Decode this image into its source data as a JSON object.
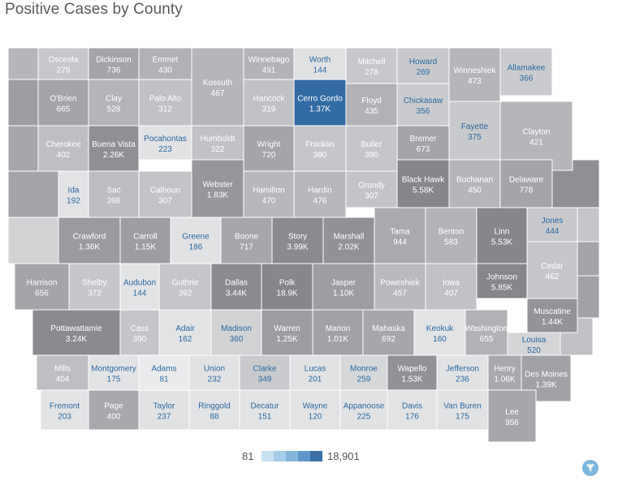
{
  "title": "Positive Cases by County",
  "legend": {
    "min_label": "81",
    "max_label": "18,901",
    "swatches": [
      "#c8e1f2",
      "#a6cde8",
      "#85b6da",
      "#5f98c8",
      "#3b6fa6"
    ]
  },
  "filter": {
    "icon": "filter-icon"
  },
  "colors": {
    "border": "#ffffff",
    "background_ring": "#d7d8da",
    "highlight": "#336ba4"
  },
  "counties": [
    {
      "name": "Osceola",
      "value": "279"
    },
    {
      "name": "Dickinson",
      "value": "736"
    },
    {
      "name": "Emmet",
      "value": "430"
    },
    {
      "name": "Kossuth",
      "value": "467"
    },
    {
      "name": "Winnebago",
      "value": "491"
    },
    {
      "name": "Worth",
      "value": "144"
    },
    {
      "name": "Mitchell",
      "value": "278"
    },
    {
      "name": "Howard",
      "value": "269"
    },
    {
      "name": "Winneshiek",
      "value": "473"
    },
    {
      "name": "Allamakee",
      "value": "366"
    },
    {
      "name": "O'Brien",
      "value": "665"
    },
    {
      "name": "Clay",
      "value": "528"
    },
    {
      "name": "Palo Alto",
      "value": "312"
    },
    {
      "name": "Hancock",
      "value": "319"
    },
    {
      "name": "Cerro Gordo",
      "value": "1.37K"
    },
    {
      "name": "Floyd",
      "value": "435"
    },
    {
      "name": "Chickasaw",
      "value": "356"
    },
    {
      "name": "Fayette",
      "value": "375"
    },
    {
      "name": "Clayton",
      "value": "421"
    },
    {
      "name": "Cherokee",
      "value": "402"
    },
    {
      "name": "Buena Vista",
      "value": "2.26K"
    },
    {
      "name": "Pocahontas",
      "value": "223"
    },
    {
      "name": "Humboldt",
      "value": "322"
    },
    {
      "name": "Wright",
      "value": "720"
    },
    {
      "name": "Franklin",
      "value": "380"
    },
    {
      "name": "Butler",
      "value": "380"
    },
    {
      "name": "Bremer",
      "value": "673"
    },
    {
      "name": "Ida",
      "value": "192"
    },
    {
      "name": "Sac",
      "value": "398"
    },
    {
      "name": "Calhoun",
      "value": "307"
    },
    {
      "name": "Webster",
      "value": "1.83K"
    },
    {
      "name": "Hamilton",
      "value": "470"
    },
    {
      "name": "Hardin",
      "value": "476"
    },
    {
      "name": "Grundy",
      "value": "307"
    },
    {
      "name": "Black Hawk",
      "value": "5.58K"
    },
    {
      "name": "Buchanan",
      "value": "450"
    },
    {
      "name": "Delaware",
      "value": "778"
    },
    {
      "name": "Crawford",
      "value": "1.36K"
    },
    {
      "name": "Carroll",
      "value": "1.15K"
    },
    {
      "name": "Greene",
      "value": "186"
    },
    {
      "name": "Boone",
      "value": "717"
    },
    {
      "name": "Story",
      "value": "3.99K"
    },
    {
      "name": "Marshall",
      "value": "2.02K"
    },
    {
      "name": "Tama",
      "value": "944"
    },
    {
      "name": "Benton",
      "value": "583"
    },
    {
      "name": "Linn",
      "value": "5.53K"
    },
    {
      "name": "Jones",
      "value": "444"
    },
    {
      "name": "Harrison",
      "value": "656"
    },
    {
      "name": "Shelby",
      "value": "372"
    },
    {
      "name": "Audubon",
      "value": "144"
    },
    {
      "name": "Guthrie",
      "value": "392"
    },
    {
      "name": "Dallas",
      "value": "3.44K"
    },
    {
      "name": "Polk",
      "value": "18.9K"
    },
    {
      "name": "Jasper",
      "value": "1.10K"
    },
    {
      "name": "Poweshiek",
      "value": "457"
    },
    {
      "name": "Iowa",
      "value": "407"
    },
    {
      "name": "Johnson",
      "value": "5.85K"
    },
    {
      "name": "Cedar",
      "value": "462"
    },
    {
      "name": "Muscatine",
      "value": "1.44K"
    },
    {
      "name": "Pottawattamie",
      "value": "3.24K"
    },
    {
      "name": "Cass",
      "value": "390"
    },
    {
      "name": "Adair",
      "value": "162"
    },
    {
      "name": "Madison",
      "value": "360"
    },
    {
      "name": "Warren",
      "value": "1.25K"
    },
    {
      "name": "Marion",
      "value": "1.01K"
    },
    {
      "name": "Mahaska",
      "value": "692"
    },
    {
      "name": "Keokuk",
      "value": "160"
    },
    {
      "name": "Washington",
      "value": "655"
    },
    {
      "name": "Louisa",
      "value": "520"
    },
    {
      "name": "Mills",
      "value": "404"
    },
    {
      "name": "Montgomery",
      "value": "175"
    },
    {
      "name": "Adams",
      "value": "81"
    },
    {
      "name": "Union",
      "value": "232"
    },
    {
      "name": "Clarke",
      "value": "349"
    },
    {
      "name": "Lucas",
      "value": "201"
    },
    {
      "name": "Monroe",
      "value": "259"
    },
    {
      "name": "Wapello",
      "value": "1.53K"
    },
    {
      "name": "Jefferson",
      "value": "236"
    },
    {
      "name": "Henry",
      "value": "1.06K"
    },
    {
      "name": "Des Moines",
      "value": "1.39K"
    },
    {
      "name": "Fremont",
      "value": "203"
    },
    {
      "name": "Page",
      "value": "400"
    },
    {
      "name": "Taylor",
      "value": "237"
    },
    {
      "name": "Ringgold",
      "value": "88"
    },
    {
      "name": "Decatur",
      "value": "151"
    },
    {
      "name": "Wayne",
      "value": "120"
    },
    {
      "name": "Appanoose",
      "value": "225"
    },
    {
      "name": "Davis",
      "value": "176"
    },
    {
      "name": "Van Buren",
      "value": "175"
    },
    {
      "name": "Lee",
      "value": "956"
    }
  ]
}
